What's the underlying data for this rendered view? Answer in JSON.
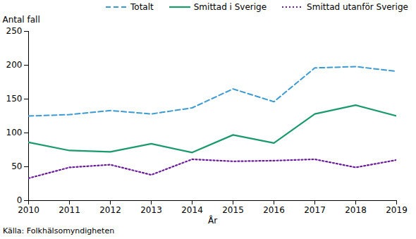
{
  "chart_data": {
    "type": "line",
    "x_label": "År",
    "y_label": "Antal fall",
    "caption": "Källa: Folkhälsomyndigheten",
    "x": [
      2010,
      2011,
      2012,
      2013,
      2014,
      2015,
      2016,
      2017,
      2018,
      2019
    ],
    "series": [
      {
        "name": "Totalt",
        "color": "#3d9ad1",
        "line_style": "dashed",
        "values": [
          125,
          127,
          133,
          128,
          137,
          165,
          146,
          196,
          198,
          191
        ]
      },
      {
        "name": "Smittad i Sverige",
        "color": "#1a9a6c",
        "line_style": "solid",
        "values": [
          86,
          74,
          72,
          84,
          71,
          97,
          85,
          128,
          141,
          125
        ]
      },
      {
        "name": "Smittad utanför Sverige",
        "color": "#6a1b9a",
        "line_style": "dotted",
        "values": [
          33,
          49,
          53,
          38,
          61,
          58,
          59,
          61,
          49,
          60
        ]
      }
    ],
    "xlim": [
      2010,
      2019
    ],
    "xticks": [
      2010,
      2011,
      2012,
      2013,
      2014,
      2015,
      2016,
      2017,
      2018,
      2019
    ],
    "ylim": [
      0,
      250
    ],
    "yticks": [
      0,
      50,
      100,
      150,
      200,
      250
    ],
    "grid": false,
    "legend": "top"
  }
}
